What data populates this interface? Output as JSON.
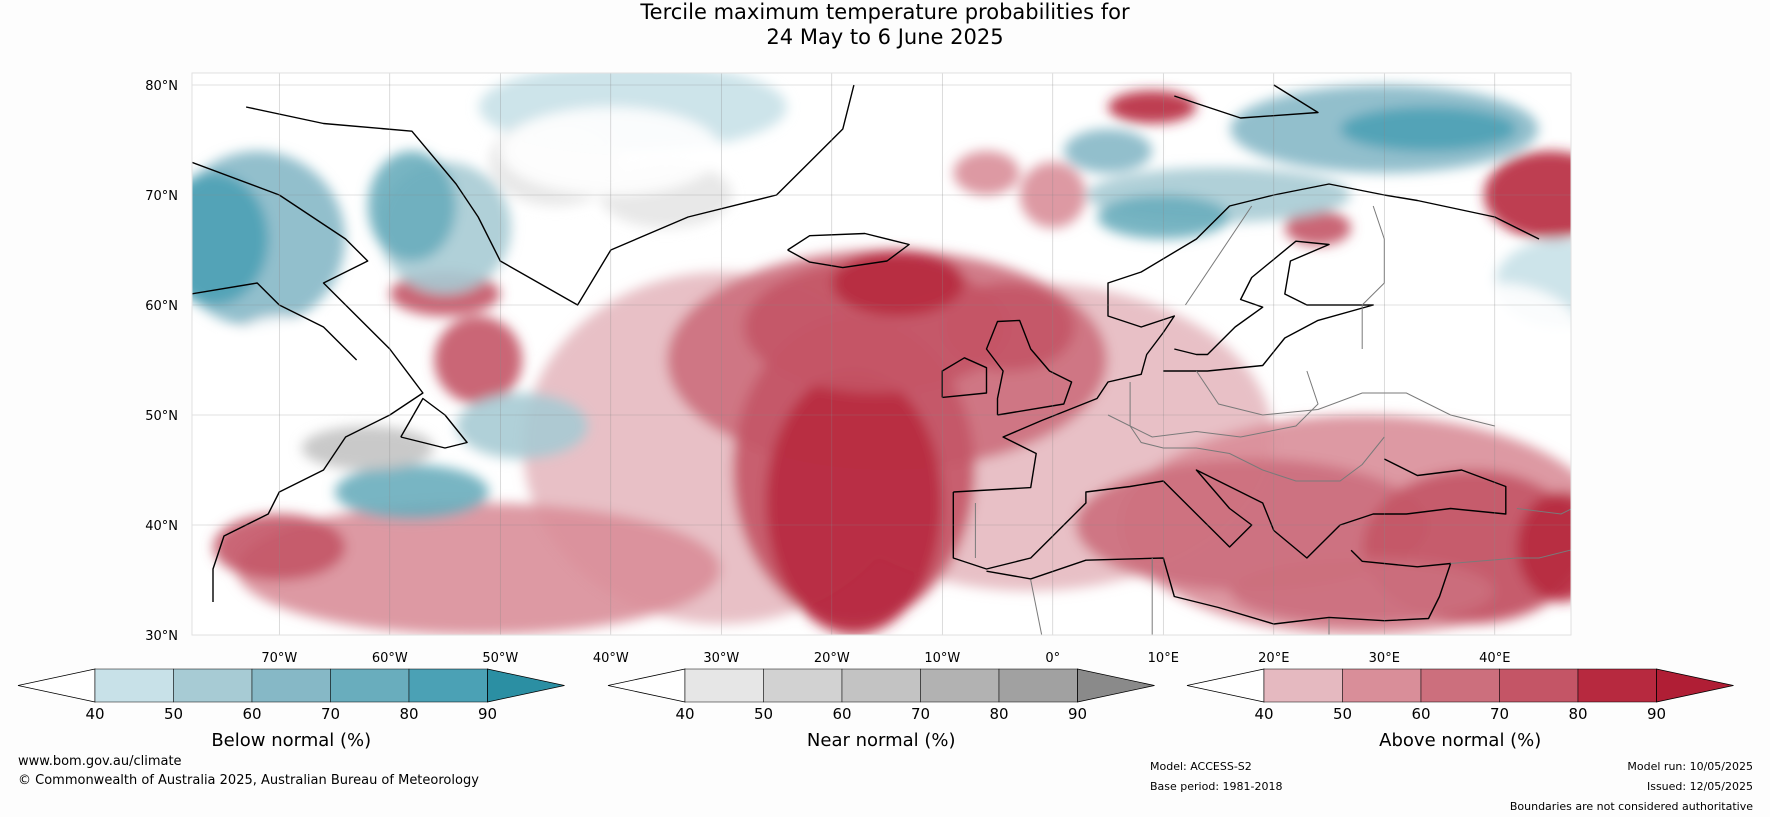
{
  "title": {
    "line1": "Tercile maximum temperature probabilities for",
    "line2": "24 May to 6 June 2025"
  },
  "map": {
    "lat_labels": [
      "80°N",
      "70°N",
      "60°N",
      "50°N",
      "40°N",
      "30°N"
    ],
    "lon_labels": [
      "70°W",
      "60°W",
      "50°W",
      "40°W",
      "30°W",
      "20°W",
      "10°W",
      "0°",
      "10°E",
      "20°E",
      "30°E",
      "40°E"
    ],
    "colors": {
      "below": [
        "#c8e1e8",
        "#a7cbd4",
        "#86b8c6",
        "#69adbd",
        "#4ba1b5",
        "#2b8fa3"
      ],
      "near": [
        "#e6e6e6",
        "#d2d2d2",
        "#c3c3c3",
        "#b2b2b2",
        "#a1a1a1",
        "#8a8a8a"
      ],
      "above": [
        "#e5b9c0",
        "#d98e99",
        "#cc6f7d",
        "#c45566",
        "#b7293f",
        "#b01e35"
      ]
    }
  },
  "legends": [
    {
      "title": "Below normal (%)",
      "ticks": [
        "40",
        "50",
        "60",
        "70",
        "80",
        "90"
      ],
      "colors": [
        "#ffffff",
        "#c8e1e8",
        "#a7cbd4",
        "#86b8c6",
        "#69adbd",
        "#4ba1b5",
        "#2b8fa3"
      ]
    },
    {
      "title": "Near normal (%)",
      "ticks": [
        "40",
        "50",
        "60",
        "70",
        "80",
        "90"
      ],
      "colors": [
        "#ffffff",
        "#e6e6e6",
        "#d2d2d2",
        "#c3c3c3",
        "#b2b2b2",
        "#a1a1a1",
        "#8a8a8a"
      ]
    },
    {
      "title": "Above normal (%)",
      "ticks": [
        "40",
        "50",
        "60",
        "70",
        "80",
        "90"
      ],
      "colors": [
        "#ffffff",
        "#e5b9c0",
        "#d98e99",
        "#cc6f7d",
        "#c45566",
        "#b7293f",
        "#b01e35"
      ]
    }
  ],
  "footer": {
    "website": "www.bom.gov.au/climate",
    "copyright": "© Commonwealth of Australia 2025, Australian Bureau of Meteorology",
    "model": "Model: ACCESS-S2",
    "base_period": "Base period: 1981-2018",
    "model_run": "Model run: 10/05/2025",
    "issued": "Issued: 12/05/2025",
    "disclaimer": "Boundaries are not considered authoritative"
  }
}
